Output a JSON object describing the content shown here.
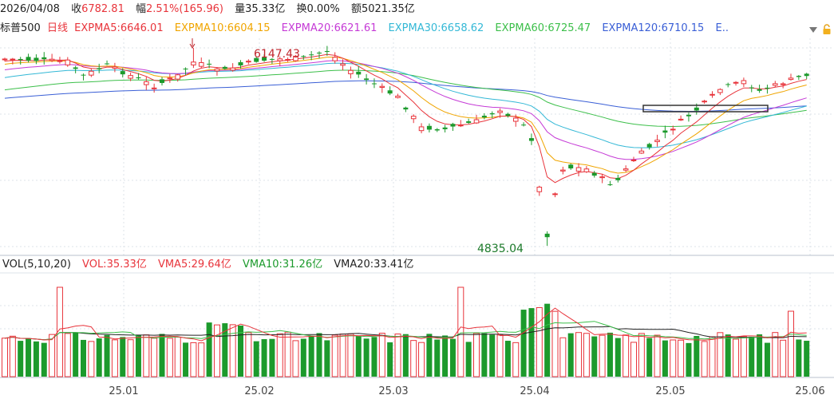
{
  "header": {
    "date": "2026/04/08",
    "close_label": "收",
    "close_value": "6782.81",
    "change_label": "幅",
    "change_value": "2.51%(165.96)",
    "volume_label": "量",
    "volume_value": "35.33亿",
    "turnover_label": "换",
    "turnover_value": "0.00%",
    "amount_label": "额",
    "amount_value": "5021.35亿"
  },
  "indicators": {
    "name": "标普500",
    "period": "日线",
    "ema5": "EXPMA5:6646.01",
    "ema10": "EXPMA10:6604.15",
    "ema20": "EXPMA20:6621.61",
    "ema30": "EXPMA30:6658.62",
    "ema60": "EXPMA60:6725.47",
    "ema120": "EXPMA120:6710.15",
    "more": "E.."
  },
  "volume_header": {
    "title": "VOL(5,10,20)",
    "vol": "VOL:35.33亿",
    "vma5": "VMA5:29.64亿",
    "vma10": "VMA10:31.26亿",
    "vma20": "VMA20:33.41亿"
  },
  "colors": {
    "up": "#e8343b",
    "down": "#1c9a2c",
    "ema5": "#e8343b",
    "ema10": "#f0a500",
    "ema20": "#c53ad6",
    "ema30": "#33b8d6",
    "ema60": "#3cbf4a",
    "ema120": "#3a5fd6",
    "vma10": "#3cbf4a"
  },
  "icons": {
    "arrow": "triangle-down-icon",
    "lock": "lock-icon"
  },
  "chart_data": {
    "type": "candlestick",
    "annotations": {
      "high_label": "6147.43",
      "low_label": "4835.04"
    },
    "x_ticks": [
      "25.01",
      "25.02",
      "25.03",
      "25.04",
      "25.05",
      "25.06"
    ]
  }
}
